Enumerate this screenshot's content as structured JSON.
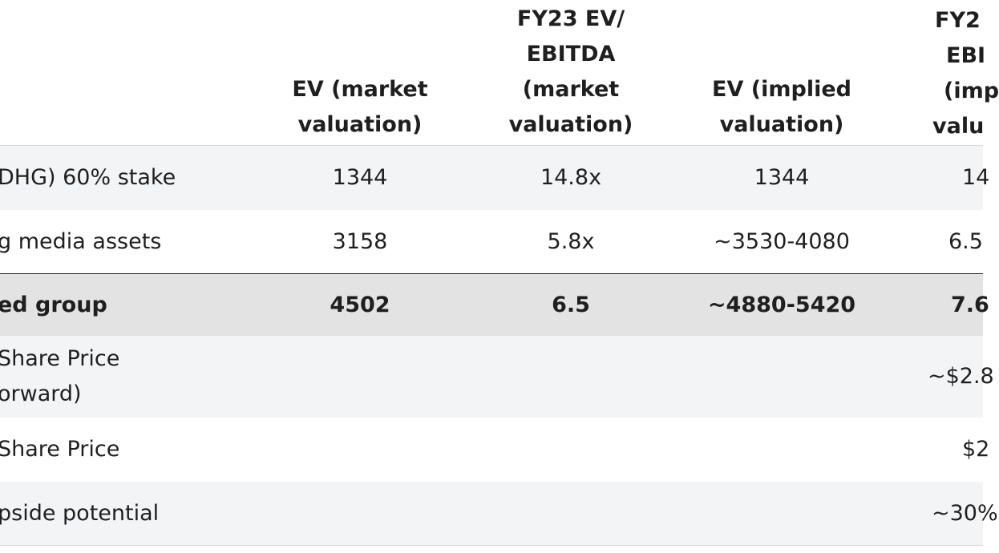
{
  "table": {
    "header": [
      null,
      [
        "EV (market",
        "valuation)"
      ],
      [
        "FY23 EV/",
        "EBITDA",
        "(market",
        "valuation)"
      ],
      [
        "EV (implied",
        "valuation)"
      ],
      [
        "FY2",
        "EBI",
        "(imp",
        "valu"
      ]
    ],
    "rows": [
      [
        "DHG) 60% stake",
        "1344",
        "14.8x",
        "1344",
        "14"
      ],
      [
        "g media assets",
        "3158",
        "5.8x",
        "~3530-4080",
        "6.5"
      ],
      [
        "ed group",
        "4502",
        "6.5",
        "~4880-5420",
        "7.6"
      ],
      [
        [
          "Share Price",
          "orward)"
        ],
        null,
        null,
        null,
        "~$2.8"
      ],
      [
        "Share Price",
        null,
        null,
        null,
        "$2"
      ],
      [
        "pside potential",
        null,
        null,
        null,
        "~30%"
      ]
    ]
  }
}
